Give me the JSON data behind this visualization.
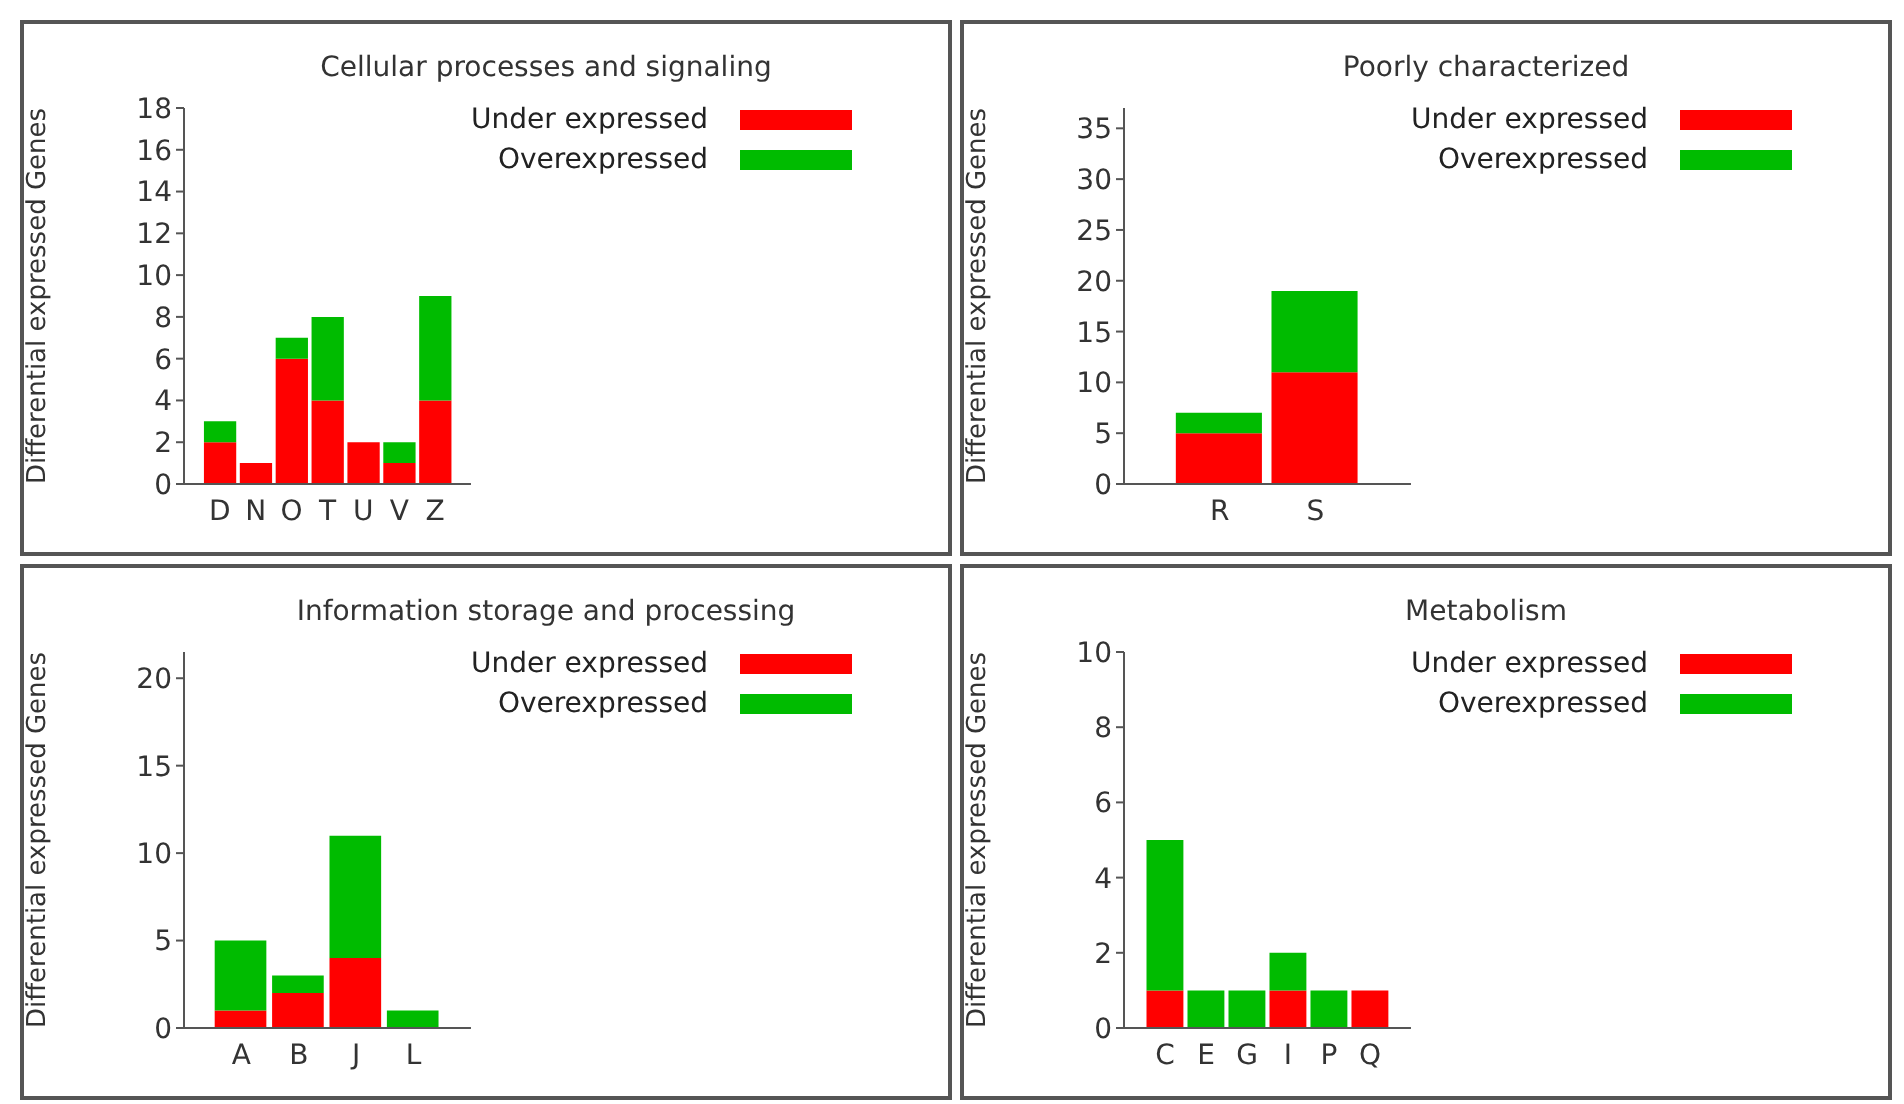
{
  "chart_data": [
    {
      "type": "bar",
      "title": "Cellular processes and signaling",
      "ylabel": "Differential expressed Genes",
      "categories": [
        "D",
        "N",
        "O",
        "T",
        "U",
        "V",
        "Z"
      ],
      "stacked": true,
      "legend": "top right",
      "grid": false,
      "ylim": [
        0,
        18
      ],
      "yticks": [
        0,
        2,
        4,
        6,
        8,
        10,
        12,
        14,
        16,
        18
      ],
      "series": [
        {
          "name": "Under expressed",
          "color": "#ff0000",
          "values": [
            2,
            1,
            6,
            4,
            2,
            1,
            4
          ]
        },
        {
          "name": "Overexpressed",
          "color": "#00bb00",
          "values": [
            1,
            0,
            1,
            4,
            0,
            1,
            5
          ]
        }
      ]
    },
    {
      "type": "bar",
      "title": "Poorly characterized",
      "ylabel": "Differential expressed Genes",
      "categories": [
        "R",
        "S"
      ],
      "stacked": true,
      "legend": "top right",
      "grid": false,
      "ylim": [
        0,
        37
      ],
      "yticks": [
        0,
        5,
        10,
        15,
        20,
        25,
        30,
        35
      ],
      "series": [
        {
          "name": "Under expressed",
          "color": "#ff0000",
          "values": [
            5,
            11
          ]
        },
        {
          "name": "Overexpressed",
          "color": "#00bb00",
          "values": [
            2,
            8
          ]
        }
      ]
    },
    {
      "type": "bar",
      "title": "Information storage and processing",
      "ylabel": "Differential expressed Genes",
      "categories": [
        "A",
        "B",
        "J",
        "L"
      ],
      "stacked": true,
      "legend": "top right",
      "grid": false,
      "ylim": [
        0,
        21.5
      ],
      "yticks": [
        0,
        5,
        10,
        15,
        20
      ],
      "series": [
        {
          "name": "Under expressed",
          "color": "#ff0000",
          "values": [
            1,
            2,
            4,
            0
          ]
        },
        {
          "name": "Overexpressed",
          "color": "#00bb00",
          "values": [
            4,
            1,
            7,
            1
          ]
        }
      ]
    },
    {
      "type": "bar",
      "title": "Metabolism",
      "ylabel": "Differential expressed Genes",
      "categories": [
        "C",
        "E",
        "G",
        "I",
        "P",
        "Q"
      ],
      "stacked": true,
      "legend": "top right",
      "grid": false,
      "ylim": [
        0,
        10
      ],
      "yticks": [
        0,
        2,
        4,
        6,
        8,
        10
      ],
      "series": [
        {
          "name": "Under expressed",
          "color": "#ff0000",
          "values": [
            1,
            0,
            0,
            1,
            0,
            1
          ]
        },
        {
          "name": "Overexpressed",
          "color": "#00bb00",
          "values": [
            4,
            1,
            1,
            1,
            1,
            0
          ]
        }
      ]
    }
  ]
}
